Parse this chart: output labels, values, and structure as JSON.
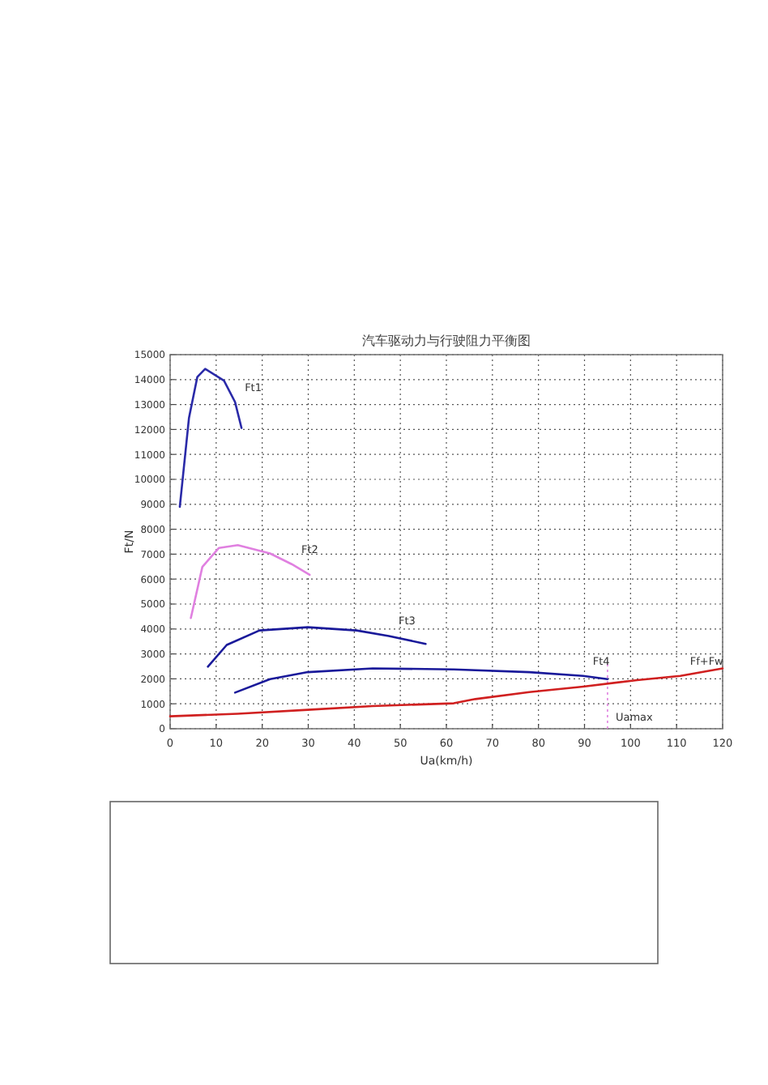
{
  "chart_data": {
    "type": "line",
    "title": "汽车驱动力与行驶阻力平衡图",
    "xlabel": "Ua(km/h)",
    "ylabel": "Ft/N",
    "xlim": [
      0,
      120
    ],
    "ylim": [
      0,
      15000
    ],
    "xticks": [
      0,
      10,
      20,
      30,
      40,
      50,
      60,
      70,
      80,
      90,
      100,
      110,
      120
    ],
    "yticks": [
      0,
      1000,
      2000,
      3000,
      4000,
      5000,
      6000,
      7000,
      8000,
      9000,
      10000,
      11000,
      12000,
      13000,
      14000,
      15000
    ],
    "grid": true,
    "marker": "none",
    "line_style": "solid",
    "series": [
      {
        "name": "Ft1",
        "color": "#2a2aa8",
        "x": [
          2.1,
          4.1,
          5.9,
          7.6,
          11.7,
          14.1,
          15.5
        ],
        "values": [
          8900,
          12470,
          14100,
          14430,
          13960,
          13100,
          12060
        ]
      },
      {
        "name": "Ft2",
        "color": "#e080e0",
        "x": [
          4.5,
          7.0,
          10.6,
          14.7,
          21.7,
          26.4,
          30.3
        ],
        "values": [
          4440,
          6490,
          7250,
          7360,
          7030,
          6600,
          6170
        ]
      },
      {
        "name": "Ft3",
        "color": "#1a1a9a",
        "x": [
          8.2,
          12.3,
          19.4,
          29.9,
          40.5,
          47.5,
          55.5
        ],
        "values": [
          2490,
          3360,
          3940,
          4070,
          3940,
          3720,
          3400
        ]
      },
      {
        "name": "Ft4",
        "color": "#1a1a9a",
        "x": [
          14.1,
          21.7,
          29.9,
          44,
          61.6,
          78,
          89.7,
          95
        ],
        "values": [
          1450,
          1990,
          2270,
          2420,
          2380,
          2270,
          2120,
          1990
        ]
      },
      {
        "name": "Ff+Fw",
        "color": "#d02020",
        "x": [
          0,
          14.7,
          29.9,
          44,
          61.6,
          66.3,
          78,
          89.7,
          101.4,
          110.8,
          120
        ],
        "values": [
          500,
          600,
          760,
          910,
          1020,
          1190,
          1470,
          1690,
          1950,
          2120,
          2420
        ]
      }
    ],
    "ref_lines": [
      {
        "axis": "x",
        "value": 95,
        "label": "Uamax",
        "color": "#e080e0",
        "line_style": "dotted"
      }
    ]
  }
}
